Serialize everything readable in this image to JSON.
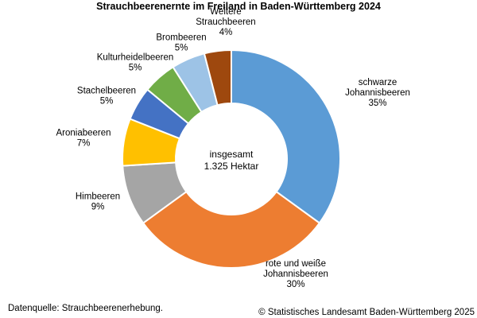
{
  "chart_data": {
    "type": "pie",
    "subtype": "donut",
    "title": "Strauchbeerenernte im Freiland in Baden-Württemberg 2024",
    "center_label": [
      "insgesamt",
      "1.325 Hektar"
    ],
    "legend": "none",
    "slices": [
      {
        "label": [
          "schwarze",
          "Johannisbeeren"
        ],
        "percent_label": "35%",
        "value": 35,
        "color": "#5B9BD5"
      },
      {
        "label": [
          "rote und weiße",
          "Johannisbeeren"
        ],
        "percent_label": "30%",
        "value": 30,
        "color": "#ED7D31"
      },
      {
        "label": [
          "Himbeeren"
        ],
        "percent_label": "9%",
        "value": 9,
        "color": "#A5A5A5"
      },
      {
        "label": [
          "Aroniabeeren"
        ],
        "percent_label": "7%",
        "value": 7,
        "color": "#FFC000"
      },
      {
        "label": [
          "Stachelbeeren"
        ],
        "percent_label": "5%",
        "value": 5,
        "color": "#4472C4"
      },
      {
        "label": [
          "Kulturheidelbeeren"
        ],
        "percent_label": "5%",
        "value": 5,
        "color": "#70AD47"
      },
      {
        "label": [
          "Brombeeren"
        ],
        "percent_label": "5%",
        "value": 5,
        "color": "#9DC3E6"
      },
      {
        "label": [
          "Weitere",
          "Strauchbeeren"
        ],
        "percent_label": "4%",
        "value": 4,
        "color": "#9E480E"
      }
    ]
  },
  "footer": {
    "source": "Datenquelle: Strauchbeerenerhebung.",
    "copyright": "© Statistisches Landesamt Baden-Württemberg 2025"
  }
}
